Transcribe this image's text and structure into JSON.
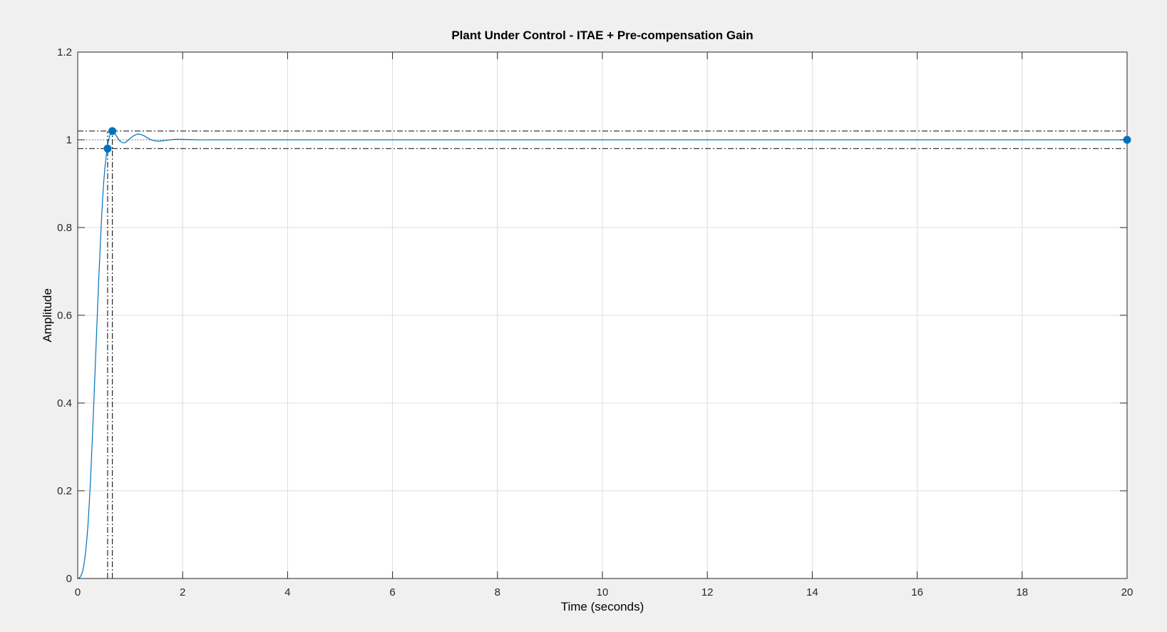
{
  "chart_data": {
    "type": "line",
    "title": "Plant Under Control - ITAE + Pre-compensation Gain",
    "xlabel": "Time (seconds)",
    "ylabel": "Amplitude",
    "xlim": [
      0,
      20
    ],
    "ylim": [
      0,
      1.2
    ],
    "xticks": [
      0,
      2,
      4,
      6,
      8,
      10,
      12,
      14,
      16,
      18,
      20
    ],
    "yticks": [
      0,
      0.2,
      0.4,
      0.6,
      0.8,
      1,
      1.2
    ],
    "xtick_labels": [
      "0",
      "2",
      "4",
      "6",
      "8",
      "10",
      "12",
      "14",
      "16",
      "18",
      "20"
    ],
    "ytick_labels": [
      "0",
      "0.2",
      "0.4",
      "0.6",
      "0.8",
      "1",
      "1.2"
    ],
    "grid": true,
    "colors": {
      "series": "#0072bd",
      "guide": "#262626",
      "grid": "#dcdcdc",
      "axes": "#262626"
    },
    "series": [
      {
        "x": [
          0,
          0.05,
          0.1,
          0.15,
          0.2,
          0.25,
          0.3,
          0.35,
          0.4,
          0.45,
          0.5,
          0.55,
          0.6,
          0.66,
          0.72,
          0.8,
          0.88,
          0.95,
          1.05,
          1.15,
          1.25,
          1.35,
          1.45,
          1.55,
          1.7,
          1.85,
          2.0,
          2.3,
          2.6,
          3,
          4,
          6,
          8,
          10,
          12,
          14,
          16,
          18,
          20
        ],
        "values": [
          0,
          0.004,
          0.02,
          0.06,
          0.13,
          0.24,
          0.38,
          0.53,
          0.68,
          0.81,
          0.91,
          0.97,
          1.005,
          1.02,
          1.012,
          0.998,
          0.993,
          0.998,
          1.008,
          1.013,
          1.01,
          1.003,
          0.998,
          0.997,
          0.999,
          1.001,
          1.001,
          1.0,
          1.0,
          1.0,
          1.0,
          1.0,
          1.0,
          1.0,
          1.0,
          1.0,
          1.0,
          1.0,
          1.0
        ]
      }
    ],
    "markers": [
      {
        "x": 0.57,
        "y": 0.98
      },
      {
        "x": 0.66,
        "y": 1.02
      },
      {
        "x": 20,
        "y": 1.0
      }
    ],
    "guide_lines": {
      "horizontal": [
        1.02,
        0.98
      ],
      "vertical": [
        0.57,
        0.66
      ],
      "steady_state": 1.0
    }
  }
}
